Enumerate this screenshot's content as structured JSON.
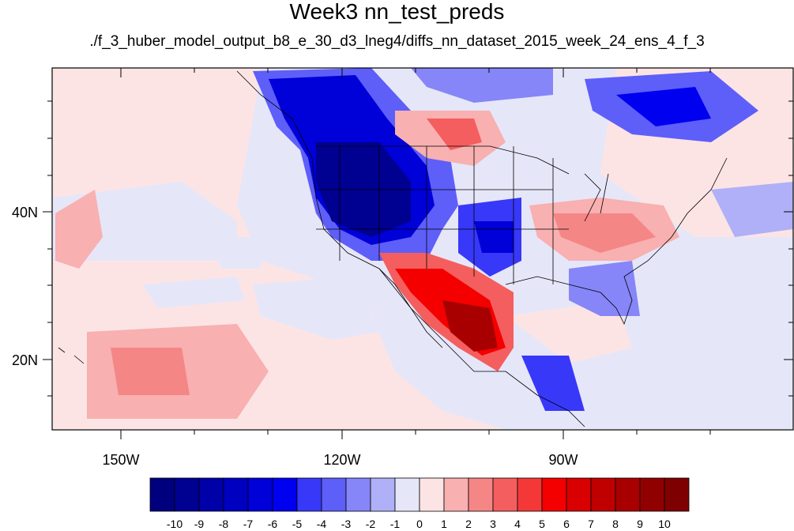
{
  "title": "Week3 nn_test_preds",
  "subtitle": "./f_3_huber_model_output_b8_e_30_d3_lneg4/diffs_nn_dataset_2015_week_24_ens_4_f_3",
  "axes": {
    "lon_ticks": [
      "150W",
      "120W",
      "90W"
    ],
    "lat_ticks": [
      "40N",
      "20N"
    ]
  },
  "colorbar": {
    "labels": [
      "-10",
      "-9",
      "-8",
      "-7",
      "-6",
      "-5",
      "-4",
      "-3",
      "-2",
      "-1",
      "0",
      "1",
      "2",
      "3",
      "4",
      "5",
      "6",
      "7",
      "8",
      "9",
      "10"
    ],
    "colors": [
      "#00007e",
      "#000091",
      "#0000a8",
      "#0000c0",
      "#0000d8",
      "#0000f0",
      "#3838f9",
      "#5e5ef9",
      "#8686f8",
      "#b0b0f8",
      "#e6e6f9",
      "#fde4e4",
      "#f8b0b0",
      "#f58686",
      "#f45e5e",
      "#f43838",
      "#f40000",
      "#d80000",
      "#c00000",
      "#a80000",
      "#900000",
      "#7e0000"
    ]
  }
}
